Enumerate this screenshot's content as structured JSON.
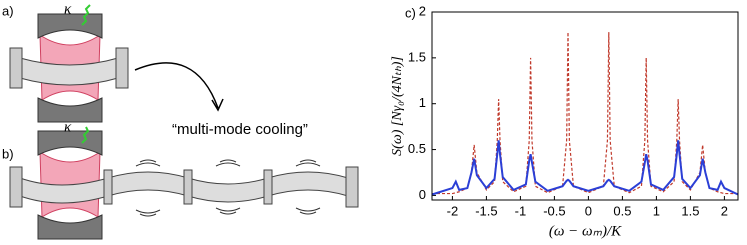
{
  "diagram": {
    "label_a": "a)",
    "label_b": "b)",
    "kappa_a": "κ",
    "kappa_b": "κ",
    "caption": "“multi-mode cooling”"
  },
  "chart_data": {
    "type": "line",
    "panel_label": "c)",
    "y_label": "S(ω) [Nγ₀/(4Nₜₕ)]",
    "x_label": "(ω − ωₘ)/K",
    "xlim": [
      -2.3,
      2.2
    ],
    "ylim": [
      -0.05,
      2
    ],
    "xticks": [
      -2,
      -1.5,
      -1,
      -0.5,
      0,
      0.5,
      1,
      1.5,
      2
    ],
    "yticks": [
      0,
      0.5,
      1,
      1.5,
      2
    ],
    "x": [
      -2.3,
      -2.0,
      -1.95,
      -1.9,
      -1.78,
      -1.72,
      -1.68,
      -1.64,
      -1.5,
      -1.38,
      -1.34,
      -1.32,
      -1.3,
      -1.26,
      -1.1,
      -0.92,
      -0.87,
      -0.85,
      -0.83,
      -0.78,
      -0.6,
      -0.38,
      -0.32,
      -0.3,
      -0.28,
      -0.22,
      0,
      0.22,
      0.28,
      0.3,
      0.32,
      0.38,
      0.6,
      0.78,
      0.83,
      0.85,
      0.87,
      0.92,
      1.1,
      1.26,
      1.3,
      1.32,
      1.34,
      1.38,
      1.5,
      1.64,
      1.68,
      1.72,
      1.78,
      1.9,
      1.95,
      2.0,
      2.2
    ],
    "series": [
      {
        "color": "#c0392b",
        "style": "dashed",
        "values": [
          0.02,
          0.02,
          0.03,
          0.04,
          0.08,
          0.25,
          0.55,
          0.25,
          0.06,
          0.15,
          0.6,
          1.05,
          0.6,
          0.15,
          0.04,
          0.1,
          0.6,
          1.5,
          0.6,
          0.1,
          0.03,
          0.1,
          0.6,
          1.78,
          0.6,
          0.1,
          0.03,
          0.1,
          0.6,
          1.78,
          0.6,
          0.1,
          0.03,
          0.1,
          0.6,
          1.5,
          0.6,
          0.1,
          0.04,
          0.15,
          0.6,
          1.05,
          0.6,
          0.15,
          0.06,
          0.25,
          0.55,
          0.25,
          0.08,
          0.04,
          0.03,
          0.02,
          0.02
        ]
      },
      {
        "color": "#2b3fd6",
        "style": "solid",
        "values": [
          0.01,
          0.08,
          0.15,
          0.06,
          0.08,
          0.25,
          0.4,
          0.22,
          0.08,
          0.18,
          0.45,
          0.6,
          0.45,
          0.2,
          0.06,
          0.12,
          0.38,
          0.45,
          0.36,
          0.15,
          0.05,
          0.1,
          0.16,
          0.17,
          0.16,
          0.1,
          0.05,
          0.1,
          0.16,
          0.17,
          0.16,
          0.1,
          0.05,
          0.15,
          0.36,
          0.45,
          0.38,
          0.12,
          0.06,
          0.2,
          0.45,
          0.6,
          0.45,
          0.18,
          0.08,
          0.22,
          0.4,
          0.25,
          0.08,
          0.06,
          0.15,
          0.08,
          0.01
        ]
      }
    ]
  }
}
